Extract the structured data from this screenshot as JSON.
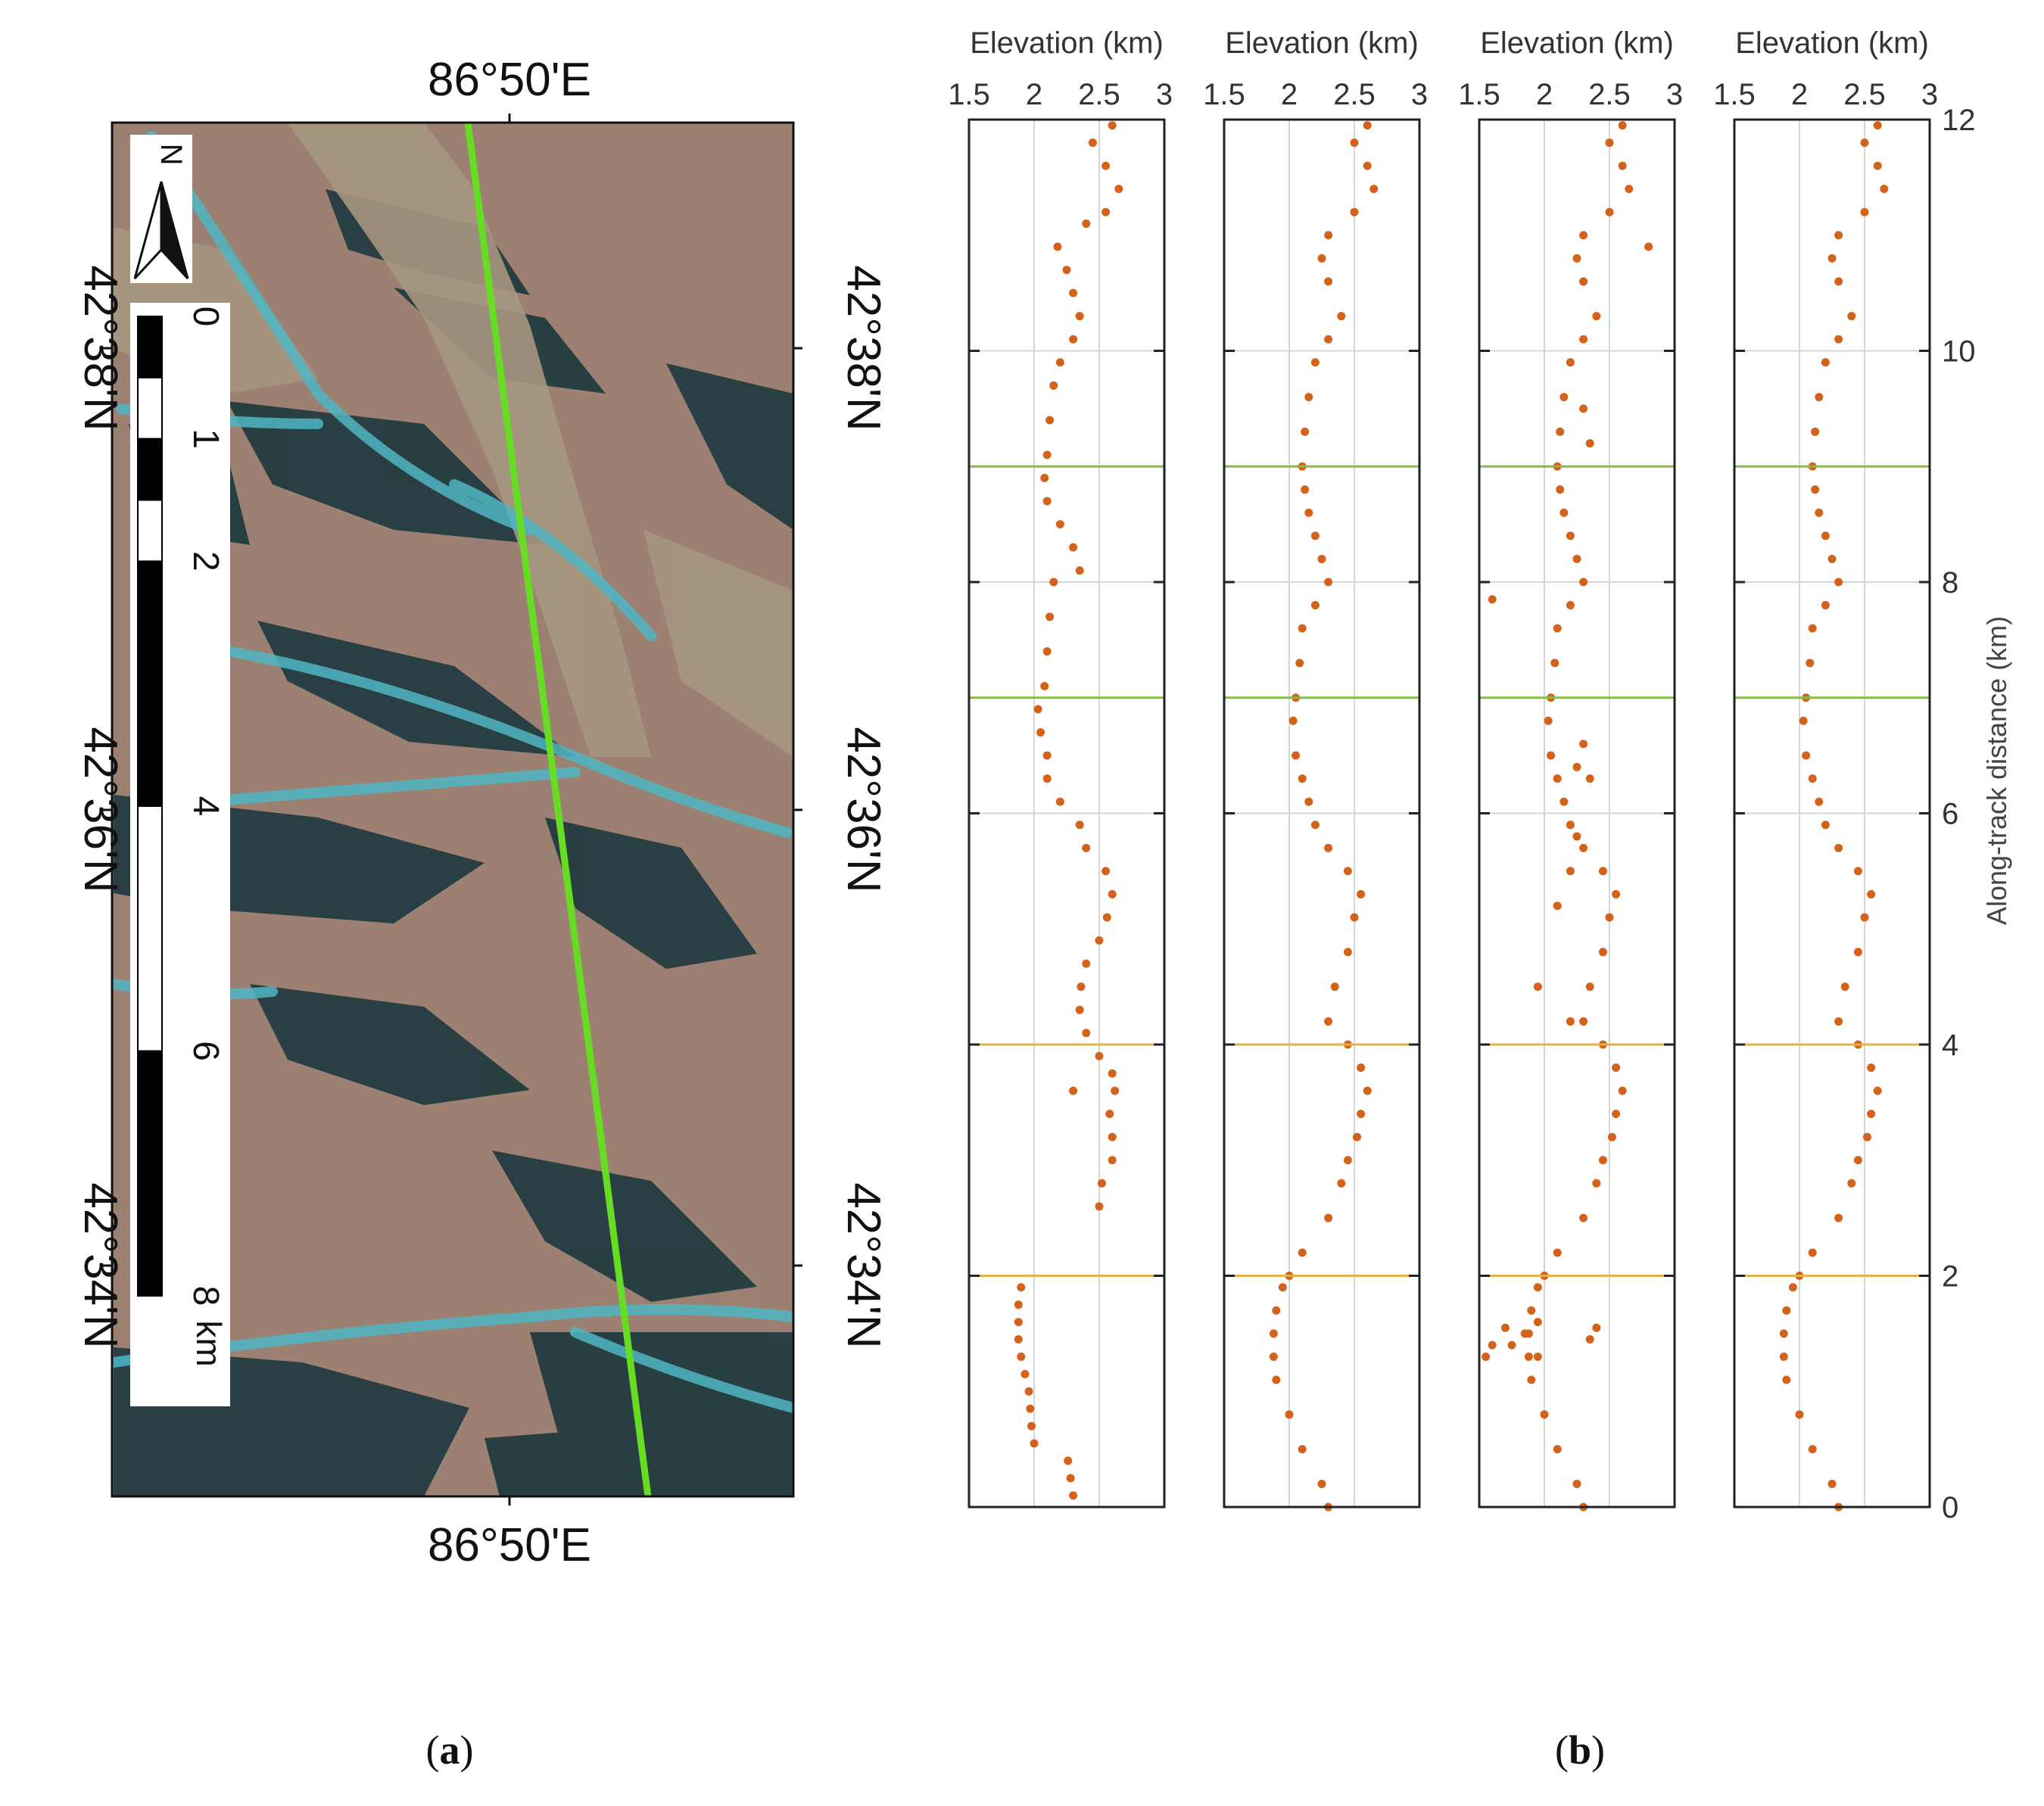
{
  "panel_a": {
    "label": "(a)",
    "label_letter": "a",
    "top_lon_label": "86°50'E",
    "bottom_lon_label": "86°50'E",
    "left_lat_labels": [
      "42°38'N",
      "42°36'N",
      "42°34'N"
    ],
    "right_lat_labels": [
      "42°38'N",
      "42°36'N",
      "42°34'N"
    ],
    "north_arrow_label": "N",
    "scale_bar": {
      "tick_labels": [
        "0",
        "1",
        "2",
        "4",
        "6",
        "8"
      ],
      "tick_values": [
        0,
        1,
        2,
        4,
        6,
        8
      ],
      "unit": "km"
    },
    "track_color": "#66dd22"
  },
  "panel_b": {
    "label": "(b)",
    "label_letter": "b"
  },
  "chart_data": {
    "type": "scatter",
    "panels": [
      {
        "xlabel": "Elevation (km)",
        "xlim": [
          1.5,
          3
        ],
        "xticks": [
          1.5,
          2,
          2.5,
          3
        ],
        "xtick_labels": [
          "1.5",
          "2",
          "2.5",
          "3"
        ],
        "points": [
          [
            2.3,
            0.1
          ],
          [
            2.28,
            0.25
          ],
          [
            2.26,
            0.4
          ],
          [
            2.0,
            0.55
          ],
          [
            1.98,
            0.7
          ],
          [
            1.97,
            0.85
          ],
          [
            1.96,
            1.0
          ],
          [
            1.93,
            1.15
          ],
          [
            1.9,
            1.3
          ],
          [
            1.88,
            1.45
          ],
          [
            1.88,
            1.6
          ],
          [
            1.88,
            1.75
          ],
          [
            1.9,
            1.9
          ],
          [
            2.5,
            2.6
          ],
          [
            2.52,
            2.8
          ],
          [
            2.6,
            3.0
          ],
          [
            2.6,
            3.2
          ],
          [
            2.58,
            3.4
          ],
          [
            2.62,
            3.6
          ],
          [
            2.6,
            3.75
          ],
          [
            2.3,
            3.6
          ],
          [
            2.5,
            3.9
          ],
          [
            2.4,
            4.1
          ],
          [
            2.35,
            4.3
          ],
          [
            2.36,
            4.5
          ],
          [
            2.4,
            4.7
          ],
          [
            2.5,
            4.9
          ],
          [
            2.56,
            5.1
          ],
          [
            2.6,
            5.3
          ],
          [
            2.55,
            5.5
          ],
          [
            2.4,
            5.7
          ],
          [
            2.35,
            5.9
          ],
          [
            2.2,
            6.1
          ],
          [
            2.1,
            6.3
          ],
          [
            2.1,
            6.5
          ],
          [
            2.05,
            6.7
          ],
          [
            2.03,
            6.9
          ],
          [
            2.08,
            7.1
          ],
          [
            2.1,
            7.4
          ],
          [
            2.12,
            7.7
          ],
          [
            2.15,
            8.0
          ],
          [
            2.35,
            8.1
          ],
          [
            2.3,
            8.3
          ],
          [
            2.2,
            8.5
          ],
          [
            2.1,
            8.7
          ],
          [
            2.08,
            8.9
          ],
          [
            2.1,
            9.1
          ],
          [
            2.12,
            9.4
          ],
          [
            2.15,
            9.7
          ],
          [
            2.2,
            9.9
          ],
          [
            2.3,
            10.1
          ],
          [
            2.35,
            10.3
          ],
          [
            2.3,
            10.5
          ],
          [
            2.25,
            10.7
          ],
          [
            2.18,
            10.9
          ],
          [
            2.4,
            11.1
          ],
          [
            2.55,
            11.2
          ],
          [
            2.65,
            11.4
          ],
          [
            2.55,
            11.6
          ],
          [
            2.45,
            11.8
          ],
          [
            2.6,
            11.95
          ]
        ]
      },
      {
        "xlabel": "Elevation (km)",
        "xlim": [
          1.5,
          3
        ],
        "xticks": [
          1.5,
          2,
          2.5,
          3
        ],
        "xtick_labels": [
          "1.5",
          "2",
          "2.5",
          "3"
        ],
        "points": [
          [
            2.3,
            0.0
          ],
          [
            2.25,
            0.2
          ],
          [
            2.1,
            0.5
          ],
          [
            2.0,
            0.8
          ],
          [
            1.9,
            1.1
          ],
          [
            1.88,
            1.3
          ],
          [
            1.88,
            1.5
          ],
          [
            1.9,
            1.7
          ],
          [
            1.95,
            1.9
          ],
          [
            2.0,
            2.0
          ],
          [
            2.1,
            2.2
          ],
          [
            2.3,
            2.5
          ],
          [
            2.4,
            2.8
          ],
          [
            2.45,
            3.0
          ],
          [
            2.52,
            3.2
          ],
          [
            2.55,
            3.4
          ],
          [
            2.6,
            3.6
          ],
          [
            2.55,
            3.8
          ],
          [
            2.45,
            4.0
          ],
          [
            2.3,
            4.2
          ],
          [
            2.35,
            4.5
          ],
          [
            2.45,
            4.8
          ],
          [
            2.5,
            5.1
          ],
          [
            2.55,
            5.3
          ],
          [
            2.45,
            5.5
          ],
          [
            2.3,
            5.7
          ],
          [
            2.2,
            5.9
          ],
          [
            2.15,
            6.1
          ],
          [
            2.1,
            6.3
          ],
          [
            2.05,
            6.5
          ],
          [
            2.03,
            6.8
          ],
          [
            2.05,
            7.0
          ],
          [
            2.08,
            7.3
          ],
          [
            2.1,
            7.6
          ],
          [
            2.2,
            7.8
          ],
          [
            2.3,
            8.0
          ],
          [
            2.25,
            8.2
          ],
          [
            2.2,
            8.4
          ],
          [
            2.15,
            8.6
          ],
          [
            2.12,
            8.8
          ],
          [
            2.1,
            9.0
          ],
          [
            2.12,
            9.3
          ],
          [
            2.15,
            9.6
          ],
          [
            2.2,
            9.9
          ],
          [
            2.3,
            10.1
          ],
          [
            2.4,
            10.3
          ],
          [
            2.3,
            10.6
          ],
          [
            2.25,
            10.8
          ],
          [
            2.3,
            11.0
          ],
          [
            2.5,
            11.2
          ],
          [
            2.65,
            11.4
          ],
          [
            2.6,
            11.6
          ],
          [
            2.5,
            11.8
          ],
          [
            2.6,
            11.95
          ]
        ]
      },
      {
        "xlabel": "Elevation (km)",
        "xlim": [
          1.5,
          3
        ],
        "xticks": [
          1.5,
          2,
          2.5,
          3
        ],
        "xtick_labels": [
          "1.5",
          "2",
          "2.5",
          "3"
        ],
        "points": [
          [
            2.3,
            0.0
          ],
          [
            2.25,
            0.2
          ],
          [
            2.1,
            0.5
          ],
          [
            2.0,
            0.8
          ],
          [
            1.9,
            1.1
          ],
          [
            1.88,
            1.3
          ],
          [
            1.88,
            1.5
          ],
          [
            1.9,
            1.7
          ],
          [
            1.95,
            1.9
          ],
          [
            2.0,
            2.0
          ],
          [
            2.1,
            2.2
          ],
          [
            2.3,
            2.5
          ],
          [
            2.4,
            2.8
          ],
          [
            2.45,
            3.0
          ],
          [
            2.52,
            3.2
          ],
          [
            2.55,
            3.4
          ],
          [
            2.6,
            3.6
          ],
          [
            2.55,
            3.8
          ],
          [
            2.45,
            4.0
          ],
          [
            2.3,
            4.2
          ],
          [
            2.35,
            4.5
          ],
          [
            2.45,
            4.8
          ],
          [
            2.5,
            5.1
          ],
          [
            2.55,
            5.3
          ],
          [
            2.45,
            5.5
          ],
          [
            2.3,
            5.7
          ],
          [
            2.2,
            5.9
          ],
          [
            2.15,
            6.1
          ],
          [
            2.1,
            6.3
          ],
          [
            2.05,
            6.5
          ],
          [
            2.03,
            6.8
          ],
          [
            2.05,
            7.0
          ],
          [
            2.08,
            7.3
          ],
          [
            2.1,
            7.6
          ],
          [
            2.2,
            7.8
          ],
          [
            2.3,
            8.0
          ],
          [
            2.25,
            8.2
          ],
          [
            2.2,
            8.4
          ],
          [
            2.15,
            8.6
          ],
          [
            2.12,
            8.8
          ],
          [
            2.1,
            9.0
          ],
          [
            2.12,
            9.3
          ],
          [
            2.15,
            9.6
          ],
          [
            2.2,
            9.9
          ],
          [
            2.3,
            10.1
          ],
          [
            2.4,
            10.3
          ],
          [
            2.3,
            10.6
          ],
          [
            2.25,
            10.8
          ],
          [
            2.3,
            11.0
          ],
          [
            2.5,
            11.2
          ],
          [
            2.65,
            11.4
          ],
          [
            2.6,
            11.6
          ],
          [
            2.5,
            11.8
          ],
          [
            2.6,
            11.95
          ],
          [
            1.55,
            1.3
          ],
          [
            1.6,
            1.4
          ],
          [
            1.7,
            1.55
          ],
          [
            1.75,
            1.4
          ],
          [
            1.85,
            1.5
          ],
          [
            1.95,
            1.6
          ],
          [
            2.4,
            1.55
          ],
          [
            2.35,
            1.45
          ],
          [
            1.95,
            1.3
          ],
          [
            1.6,
            7.85
          ],
          [
            1.95,
            4.5
          ],
          [
            2.1,
            5.2
          ],
          [
            2.2,
            5.5
          ],
          [
            2.25,
            5.8
          ],
          [
            2.2,
            4.2
          ],
          [
            2.25,
            6.4
          ],
          [
            2.3,
            6.6
          ],
          [
            2.35,
            6.3
          ],
          [
            2.3,
            9.5
          ],
          [
            2.35,
            9.2
          ],
          [
            2.8,
            10.9
          ],
          [
            2.3,
            10.6
          ]
        ]
      },
      {
        "xlabel": "Elevation (km)",
        "xlim": [
          1.5,
          3
        ],
        "xticks": [
          1.5,
          2,
          2.5,
          3
        ],
        "xtick_labels": [
          "1.5",
          "2",
          "2.5",
          "3"
        ],
        "points": [
          [
            2.3,
            0.0
          ],
          [
            2.25,
            0.2
          ],
          [
            2.1,
            0.5
          ],
          [
            2.0,
            0.8
          ],
          [
            1.9,
            1.1
          ],
          [
            1.88,
            1.3
          ],
          [
            1.88,
            1.5
          ],
          [
            1.9,
            1.7
          ],
          [
            1.95,
            1.9
          ],
          [
            2.0,
            2.0
          ],
          [
            2.1,
            2.2
          ],
          [
            2.3,
            2.5
          ],
          [
            2.4,
            2.8
          ],
          [
            2.45,
            3.0
          ],
          [
            2.52,
            3.2
          ],
          [
            2.55,
            3.4
          ],
          [
            2.6,
            3.6
          ],
          [
            2.55,
            3.8
          ],
          [
            2.45,
            4.0
          ],
          [
            2.3,
            4.2
          ],
          [
            2.35,
            4.5
          ],
          [
            2.45,
            4.8
          ],
          [
            2.5,
            5.1
          ],
          [
            2.55,
            5.3
          ],
          [
            2.45,
            5.5
          ],
          [
            2.3,
            5.7
          ],
          [
            2.2,
            5.9
          ],
          [
            2.15,
            6.1
          ],
          [
            2.1,
            6.3
          ],
          [
            2.05,
            6.5
          ],
          [
            2.03,
            6.8
          ],
          [
            2.05,
            7.0
          ],
          [
            2.08,
            7.3
          ],
          [
            2.1,
            7.6
          ],
          [
            2.2,
            7.8
          ],
          [
            2.3,
            8.0
          ],
          [
            2.25,
            8.2
          ],
          [
            2.2,
            8.4
          ],
          [
            2.15,
            8.6
          ],
          [
            2.12,
            8.8
          ],
          [
            2.1,
            9.0
          ],
          [
            2.12,
            9.3
          ],
          [
            2.15,
            9.6
          ],
          [
            2.2,
            9.9
          ],
          [
            2.3,
            10.1
          ],
          [
            2.4,
            10.3
          ],
          [
            2.3,
            10.6
          ],
          [
            2.25,
            10.8
          ],
          [
            2.3,
            11.0
          ],
          [
            2.5,
            11.2
          ],
          [
            2.65,
            11.4
          ],
          [
            2.6,
            11.6
          ],
          [
            2.5,
            11.8
          ],
          [
            2.6,
            11.95
          ]
        ]
      }
    ],
    "ylabel": "Along-track distance (km)",
    "ylim": [
      0,
      12
    ],
    "yticks": [
      0,
      2,
      4,
      6,
      8,
      10,
      12
    ],
    "ytick_labels": [
      "0",
      "2",
      "4",
      "6",
      "8",
      "10",
      "12"
    ],
    "grid": true,
    "point_color": "#d4621a",
    "highlight_bands": [
      {
        "y_range": [
          7,
          9
        ],
        "color": "#8ab84a"
      },
      {
        "y_range": [
          2,
          4
        ],
        "color": "#e6b04a"
      }
    ]
  }
}
